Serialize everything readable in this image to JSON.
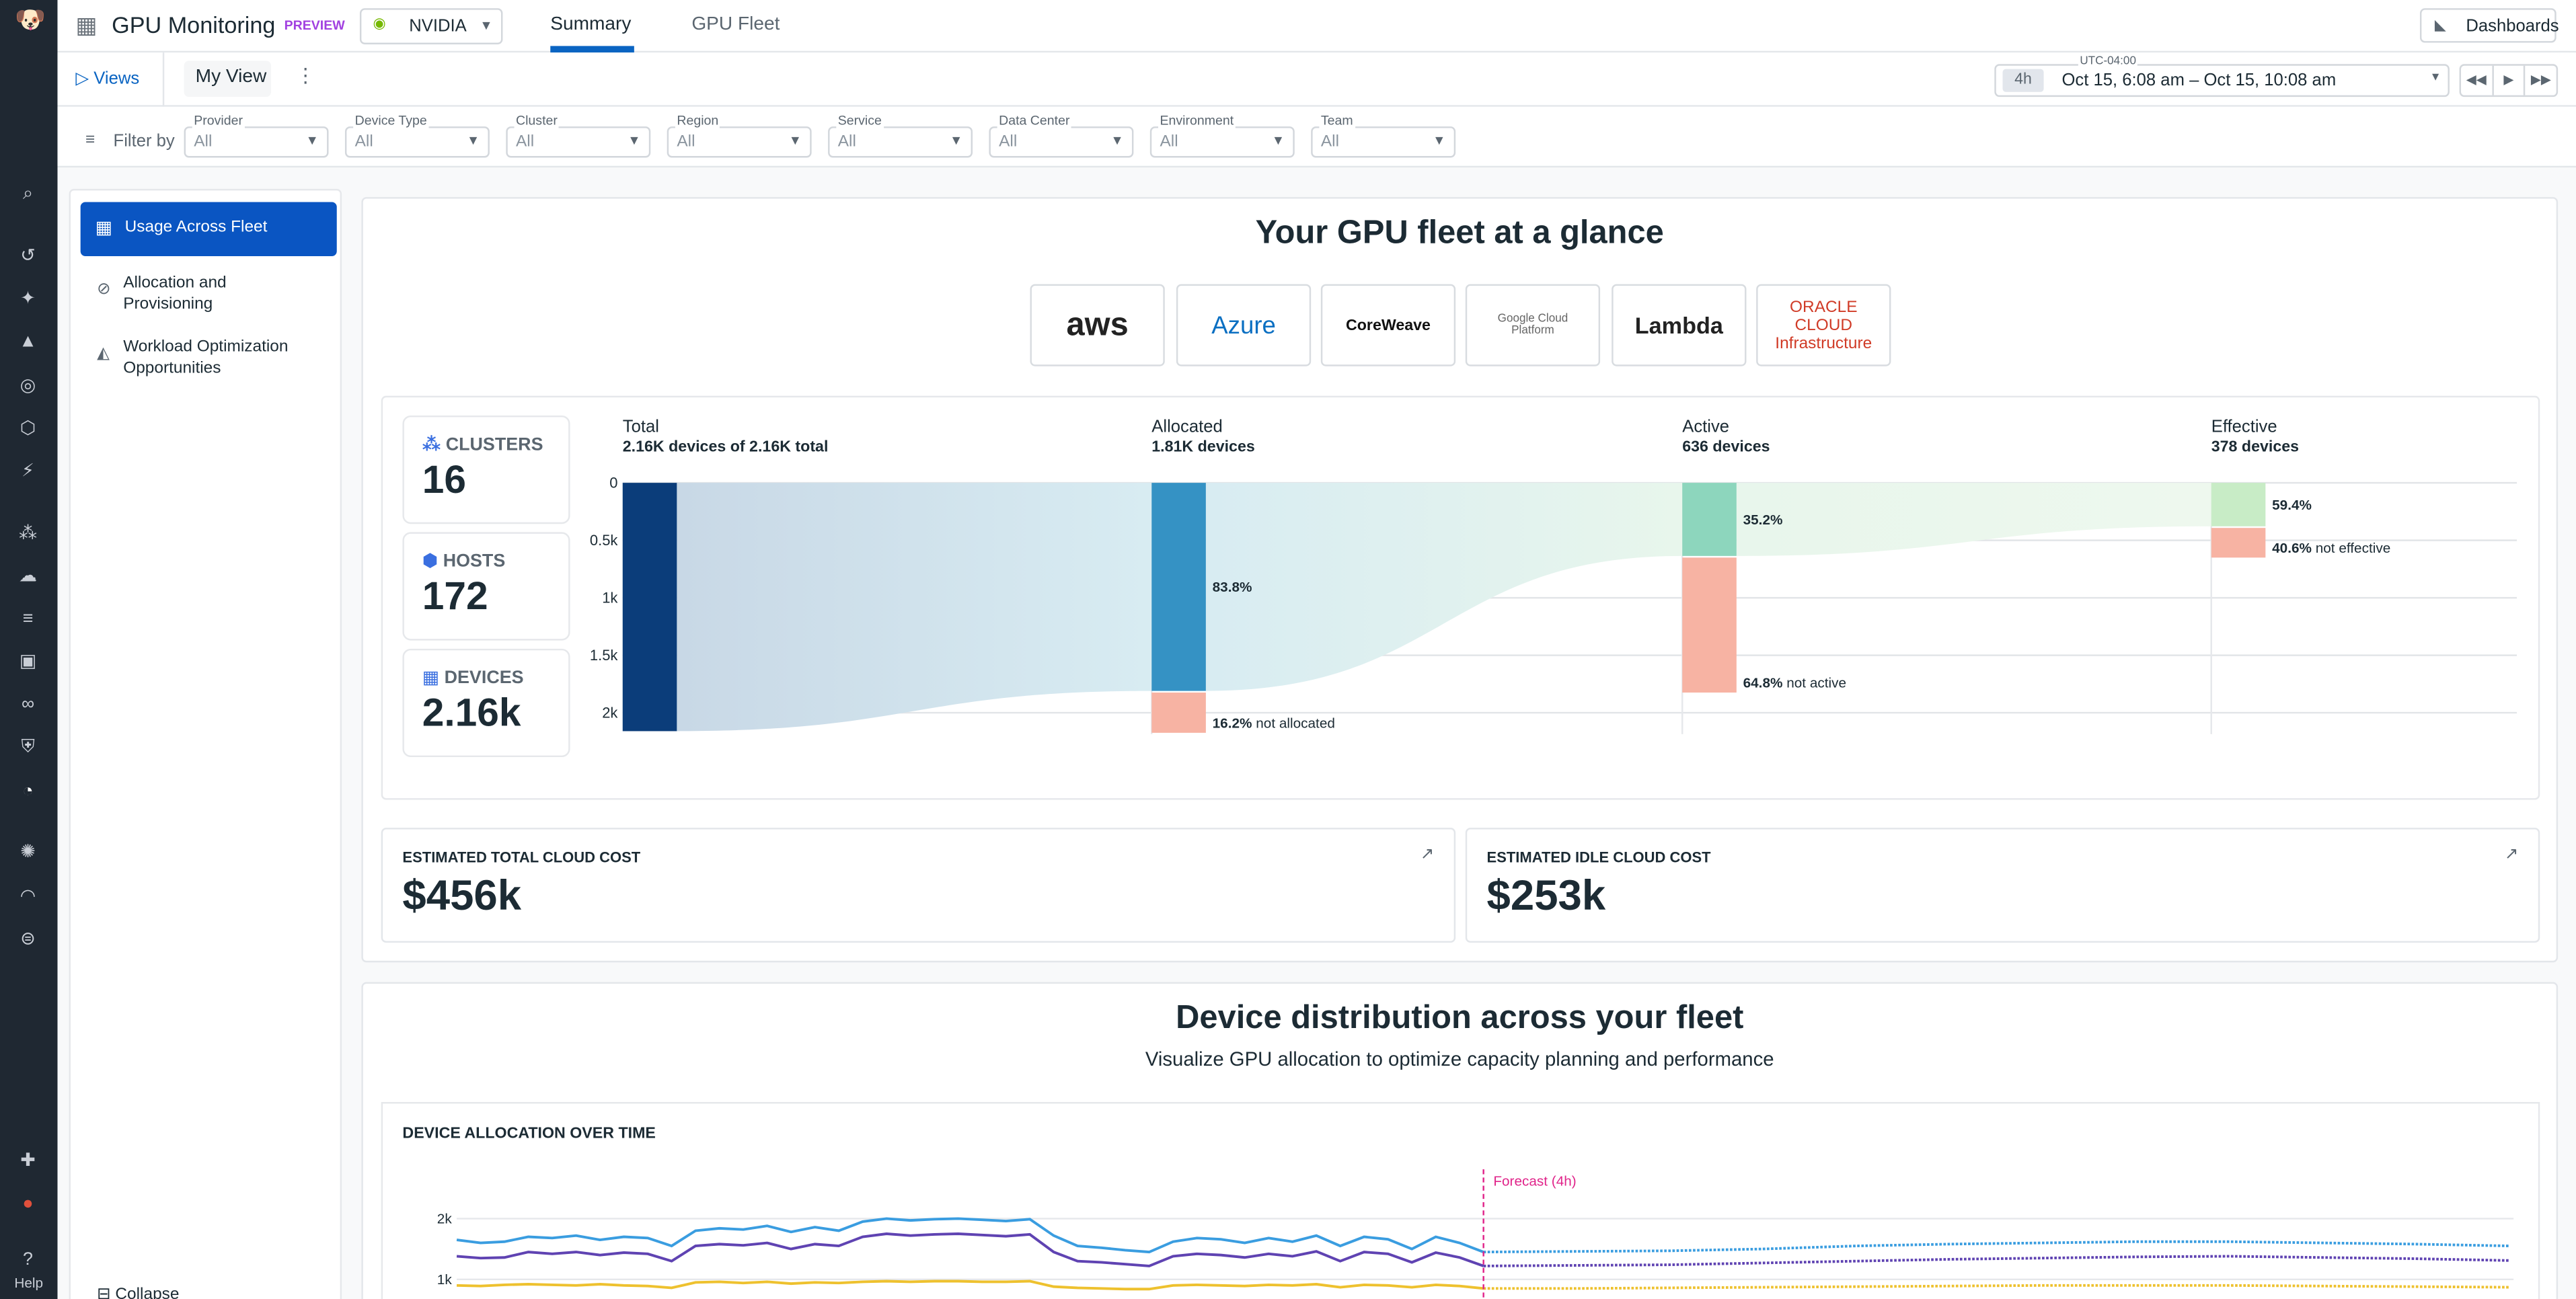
{
  "app": {
    "title": "GPU Monitoring",
    "badge": "PREVIEW",
    "vendor": "NVIDIA",
    "vendor_logo_text": "nvidia",
    "tabs": [
      "Summary",
      "GPU Fleet"
    ],
    "active_tab": "Summary",
    "dashboards_label": "Dashboards",
    "help_label": "Help"
  },
  "viewbar": {
    "views_label": "Views",
    "current_view": "My View",
    "timezone": "UTC-04:00",
    "range_badge": "4h",
    "range": "Oct 15, 6:08 am – Oct 15, 10:08 am"
  },
  "filters": {
    "label": "Filter by",
    "items": [
      {
        "label": "Provider",
        "value": "All"
      },
      {
        "label": "Device Type",
        "value": "All"
      },
      {
        "label": "Cluster",
        "value": "All"
      },
      {
        "label": "Region",
        "value": "All"
      },
      {
        "label": "Service",
        "value": "All"
      },
      {
        "label": "Data Center",
        "value": "All"
      },
      {
        "label": "Environment",
        "value": "All"
      },
      {
        "label": "Team",
        "value": "All"
      }
    ]
  },
  "sidebar": {
    "items": [
      {
        "label": "Usage Across Fleet",
        "active": true
      },
      {
        "label": "Allocation and Provisioning"
      },
      {
        "label": "Workload Optimization Opportunities"
      }
    ],
    "collapse_label": "Collapse"
  },
  "fleet": {
    "title": "Your GPU fleet at a glance",
    "providers": [
      "aws",
      "Azure",
      "CoreWeave",
      "Google Cloud Platform",
      "Lambda",
      "ORACLE CLOUD Infrastructure"
    ],
    "stats": [
      {
        "label": "CLUSTERS",
        "value": "16"
      },
      {
        "label": "HOSTS",
        "value": "172"
      },
      {
        "label": "DEVICES",
        "value": "2.16k"
      }
    ],
    "columns": [
      {
        "title": "Total",
        "sub": "2.16K devices of 2.16K total"
      },
      {
        "title": "Allocated",
        "sub": "1.81K devices"
      },
      {
        "title": "Active",
        "sub": "636 devices"
      },
      {
        "title": "Effective",
        "sub": "378 devices"
      }
    ]
  },
  "costs": [
    {
      "label": "ESTIMATED TOTAL CLOUD COST",
      "value": "$456k"
    },
    {
      "label": "ESTIMATED IDLE CLOUD COST",
      "value": "$253k"
    }
  ],
  "distribution": {
    "title": "Device distribution across your fleet",
    "subtitle": "Visualize GPU allocation to optimize capacity planning and performance"
  },
  "chart_data": [
    {
      "type": "bar",
      "title": "",
      "stages": [
        "Total",
        "Allocated",
        "Active",
        "Effective"
      ],
      "values": [
        2160,
        1810,
        636,
        378
      ],
      "percent_labels": [
        "",
        "83.8%",
        "35.2%",
        "59.4%"
      ],
      "remainder_labels": [
        "",
        "16.2% not allocated",
        "64.8% not active",
        "40.6% not effective"
      ],
      "yticks": [
        "0",
        "0.5k",
        "1k",
        "1.5k",
        "2k"
      ],
      "ylim": [
        0,
        2160
      ],
      "colors": {
        "total": "#0b3d7a",
        "allocated": "#3592c4",
        "active": "#8dd6bd",
        "effective": "#c8ecc6",
        "remainder": "#f7b3a3"
      }
    },
    {
      "type": "line",
      "title": "DEVICE ALLOCATION OVER TIME",
      "annotation": "Forecast (4h)",
      "yticks": [
        "1k",
        "2k"
      ],
      "series": [
        {
          "color": "#3a9de0",
          "values": [
            1.65,
            1.6,
            1.62,
            1.7,
            1.68,
            1.72,
            1.65,
            1.7,
            1.68,
            1.55,
            1.8,
            1.84,
            1.82,
            1.88,
            1.78,
            1.86,
            1.8,
            1.95,
            2.0,
            1.97,
            1.99,
            2.0,
            1.98,
            1.96,
            1.99,
            1.72,
            1.55,
            1.52,
            1.48,
            1.45,
            1.62,
            1.68,
            1.66,
            1.6,
            1.68,
            1.62,
            1.72,
            1.55,
            1.7,
            1.66,
            1.5,
            1.7,
            1.6,
            1.45
          ],
          "forecast": [
            1.45,
            1.46,
            1.47,
            1.5,
            1.55,
            1.58,
            1.6,
            1.62,
            1.62,
            1.6,
            1.58,
            1.55
          ]
        },
        {
          "color": "#5f43b2",
          "values": [
            1.38,
            1.35,
            1.36,
            1.45,
            1.42,
            1.45,
            1.4,
            1.44,
            1.42,
            1.3,
            1.55,
            1.58,
            1.56,
            1.6,
            1.5,
            1.58,
            1.55,
            1.7,
            1.75,
            1.72,
            1.74,
            1.75,
            1.73,
            1.71,
            1.74,
            1.45,
            1.3,
            1.28,
            1.25,
            1.22,
            1.38,
            1.42,
            1.4,
            1.36,
            1.42,
            1.38,
            1.46,
            1.3,
            1.45,
            1.42,
            1.28,
            1.44,
            1.36,
            1.22
          ],
          "forecast": [
            1.22,
            1.23,
            1.24,
            1.27,
            1.3,
            1.33,
            1.35,
            1.37,
            1.38,
            1.36,
            1.34,
            1.31
          ]
        },
        {
          "color": "#eec12e",
          "values": [
            0.9,
            0.89,
            0.91,
            0.92,
            0.91,
            0.9,
            0.92,
            0.9,
            0.89,
            0.86,
            0.95,
            0.96,
            0.94,
            0.96,
            0.93,
            0.95,
            0.94,
            0.96,
            0.97,
            0.96,
            0.97,
            0.97,
            0.96,
            0.96,
            0.97,
            0.88,
            0.86,
            0.85,
            0.84,
            0.84,
            0.9,
            0.91,
            0.9,
            0.89,
            0.91,
            0.9,
            0.92,
            0.87,
            0.91,
            0.9,
            0.87,
            0.91,
            0.89,
            0.85
          ],
          "forecast": [
            0.85,
            0.85,
            0.86,
            0.87,
            0.88,
            0.89,
            0.9,
            0.9,
            0.9,
            0.89,
            0.88,
            0.87
          ]
        }
      ]
    }
  ]
}
